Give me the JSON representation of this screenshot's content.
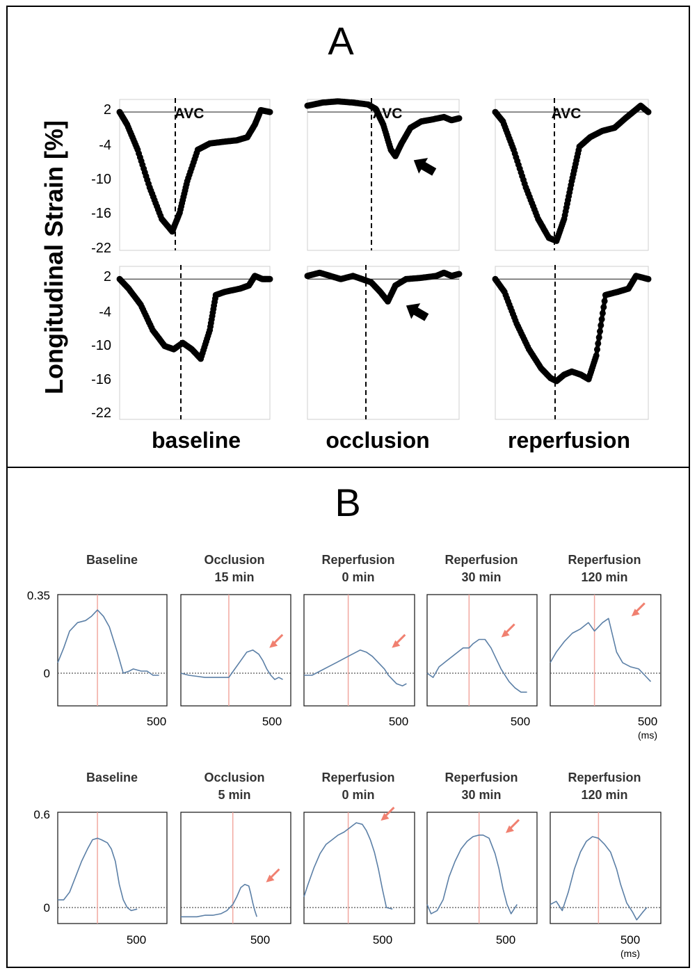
{
  "panel_a": {
    "letter": "A",
    "ylabel": "Longitudinal Strain [%]",
    "yticks": [
      "2",
      "-4",
      "-10",
      "-16",
      "-22"
    ],
    "column_labels": [
      "baseline",
      "occlusion",
      "reperfusion"
    ],
    "avc_label": "AVC"
  },
  "panel_b": {
    "letter": "B",
    "row1_titles": [
      [
        "Baseline",
        ""
      ],
      [
        "Occlusion",
        "15 min"
      ],
      [
        "Reperfusion",
        "0 min"
      ],
      [
        "Reperfusion",
        "30 min"
      ],
      [
        "Reperfusion",
        "120 min"
      ]
    ],
    "row2_titles": [
      [
        "Baseline",
        ""
      ],
      [
        "Occlusion",
        "5 min"
      ],
      [
        "Reperfusion",
        "0 min"
      ],
      [
        "Reperfusion",
        "30 min"
      ],
      [
        "Reperfusion",
        "120 min"
      ]
    ],
    "row1_yticks": [
      "0.35",
      "0"
    ],
    "row2_yticks": [
      "0.6",
      "0"
    ],
    "xtick": "500",
    "xunit": "(ms)"
  },
  "colors": {
    "strain_trace": "#000000",
    "b_trace": "#5b7fa6",
    "b_marker": "#f2a8a0",
    "arrow": "#f08070"
  },
  "chart_data": [
    {
      "type": "line",
      "panel": "A",
      "ylabel": "Longitudinal Strain [%]",
      "ylim": [
        -22,
        2
      ],
      "yticks": [
        2,
        -4,
        -10,
        -16,
        -22
      ],
      "x_range": [
        0,
        1
      ],
      "series": [
        {
          "column": "baseline",
          "row": 1,
          "avc": 0.35,
          "x": [
            0,
            0.05,
            0.12,
            0.2,
            0.28,
            0.35,
            0.4,
            0.45,
            0.52,
            0.6,
            0.7,
            0.78,
            0.85,
            0.9,
            0.94,
            1
          ],
          "y": [
            0,
            -2,
            -6,
            -12,
            -17,
            -19,
            -16,
            -11,
            -6,
            -5,
            -4.7,
            -4.5,
            -4,
            -2,
            0.3,
            0
          ]
        },
        {
          "column": "occlusion",
          "row": 1,
          "avc": 0.42,
          "x": [
            0,
            0.1,
            0.2,
            0.3,
            0.4,
            0.45,
            0.5,
            0.55,
            0.58,
            0.62,
            0.68,
            0.75,
            0.82,
            0.9,
            0.95,
            1
          ],
          "y": [
            1,
            1.5,
            1.7,
            1.5,
            1.2,
            0.5,
            -2,
            -6,
            -7,
            -5,
            -2.5,
            -1.5,
            -1.2,
            -0.8,
            -1.3,
            -1
          ]
        },
        {
          "column": "reperfusion",
          "row": 1,
          "avc": 0.4,
          "x": [
            0,
            0.05,
            0.12,
            0.2,
            0.28,
            0.35,
            0.4,
            0.45,
            0.5,
            0.55,
            0.62,
            0.7,
            0.78,
            0.85,
            0.9,
            0.95,
            1
          ],
          "y": [
            0,
            -1.5,
            -6,
            -12,
            -17,
            -20,
            -20.5,
            -17,
            -11,
            -5.5,
            -4,
            -3,
            -2.5,
            -1,
            0,
            1,
            0
          ]
        },
        {
          "column": "baseline",
          "row": 2,
          "avc": 0.4,
          "x": [
            0,
            0.06,
            0.14,
            0.22,
            0.3,
            0.36,
            0.42,
            0.48,
            0.54,
            0.6,
            0.64,
            0.7,
            0.8,
            0.86,
            0.9,
            0.95,
            1
          ],
          "y": [
            0,
            -1.5,
            -4,
            -8,
            -10.5,
            -11,
            -10,
            -11,
            -12.5,
            -8,
            -2.5,
            -2,
            -1.5,
            -1,
            0.5,
            0,
            0
          ]
        },
        {
          "column": "occlusion",
          "row": 2,
          "avc": 0.4,
          "x": [
            0,
            0.08,
            0.15,
            0.22,
            0.3,
            0.36,
            0.42,
            0.48,
            0.53,
            0.58,
            0.65,
            0.75,
            0.85,
            0.9,
            0.95,
            1
          ],
          "y": [
            0.5,
            1,
            0.5,
            0,
            0.5,
            0,
            -0.5,
            -2,
            -3.5,
            -1,
            0,
            0.2,
            0.5,
            1,
            0.5,
            0.8
          ]
        },
        {
          "column": "reperfusion",
          "row": 2,
          "avc": 0.4,
          "x": [
            0,
            0.06,
            0.14,
            0.22,
            0.3,
            0.36,
            0.4,
            0.45,
            0.5,
            0.56,
            0.61,
            0.66,
            0.72,
            0.8,
            0.87,
            0.92,
            1
          ],
          "y": [
            0,
            -2,
            -7,
            -11,
            -14,
            -15.5,
            -16,
            -15,
            -14.5,
            -15,
            -15.7,
            -12,
            -2.5,
            -2,
            -1.5,
            0.5,
            0
          ]
        }
      ]
    },
    {
      "type": "line",
      "panel": "B",
      "row": 1,
      "ylim": [
        -0.1,
        0.35
      ],
      "yticks": [
        0,
        0.35
      ],
      "x_range": [
        0,
        550
      ],
      "xticks": [
        500
      ],
      "series": [
        {
          "title": "Baseline",
          "marker": 200,
          "x": [
            0,
            30,
            60,
            100,
            140,
            170,
            200,
            230,
            260,
            300,
            330,
            360,
            380,
            420,
            450,
            480,
            510
          ],
          "y": [
            0.05,
            0.12,
            0.2,
            0.24,
            0.25,
            0.27,
            0.3,
            0.27,
            0.22,
            0.1,
            0,
            0.01,
            0.02,
            0.01,
            0.01,
            -0.01,
            -0.01
          ]
        },
        {
          "title": "Occlusion 15 min",
          "marker": 240,
          "x": [
            0,
            40,
            80,
            120,
            160,
            200,
            240,
            270,
            300,
            330,
            360,
            390,
            410,
            430,
            450,
            470,
            490,
            510
          ],
          "y": [
            0,
            -0.01,
            -0.015,
            -0.02,
            -0.02,
            -0.02,
            -0.02,
            0.02,
            0.06,
            0.1,
            0.11,
            0.09,
            0.06,
            0.02,
            -0.01,
            -0.03,
            -0.02,
            -0.03
          ]
        },
        {
          "title": "Reperfusion 0 min",
          "marker": 220,
          "x": [
            0,
            40,
            80,
            120,
            160,
            200,
            240,
            280,
            310,
            340,
            370,
            400,
            420,
            440,
            460,
            490,
            510
          ],
          "y": [
            -0.01,
            -0.01,
            0.01,
            0.03,
            0.05,
            0.07,
            0.09,
            0.11,
            0.1,
            0.08,
            0.05,
            0.02,
            -0.01,
            -0.03,
            -0.05,
            -0.06,
            -0.05
          ]
        },
        {
          "title": "Reperfusion 30 min",
          "marker": 210,
          "x": [
            0,
            30,
            60,
            100,
            140,
            180,
            210,
            230,
            260,
            290,
            320,
            350,
            370,
            390,
            410,
            440,
            470,
            500
          ],
          "y": [
            0,
            -0.02,
            0.03,
            0.06,
            0.09,
            0.12,
            0.12,
            0.14,
            0.16,
            0.16,
            0.12,
            0.06,
            0.02,
            -0.01,
            -0.04,
            -0.07,
            -0.09,
            -0.09
          ]
        },
        {
          "title": "Reperfusion 120 min",
          "marker": 220,
          "x": [
            0,
            30,
            70,
            110,
            150,
            190,
            220,
            240,
            260,
            290,
            310,
            330,
            360,
            400,
            440,
            470,
            500
          ],
          "y": [
            0.05,
            0.1,
            0.15,
            0.19,
            0.21,
            0.24,
            0.2,
            0.22,
            0.24,
            0.26,
            0.18,
            0.1,
            0.05,
            0.03,
            0.02,
            -0.01,
            -0.04
          ]
        }
      ]
    },
    {
      "type": "line",
      "panel": "B",
      "row": 2,
      "ylim": [
        -0.1,
        0.6
      ],
      "yticks": [
        0,
        0.6
      ],
      "x_range": [
        0,
        550
      ],
      "xticks": [
        500
      ],
      "series": [
        {
          "title": "Baseline",
          "marker": 200,
          "x": [
            0,
            30,
            60,
            90,
            120,
            150,
            175,
            200,
            220,
            250,
            270,
            290,
            310,
            330,
            350,
            370,
            400
          ],
          "y": [
            0.05,
            0.05,
            0.1,
            0.2,
            0.3,
            0.38,
            0.44,
            0.45,
            0.44,
            0.42,
            0.38,
            0.3,
            0.15,
            0.05,
            0,
            -0.02,
            -0.01
          ]
        },
        {
          "title": "Occlusion 5 min",
          "marker": 260,
          "x": [
            0,
            40,
            80,
            120,
            160,
            200,
            230,
            260,
            280,
            300,
            320,
            340,
            350,
            360,
            370,
            380
          ],
          "y": [
            -0.06,
            -0.06,
            -0.06,
            -0.05,
            -0.05,
            -0.04,
            -0.02,
            0.02,
            0.07,
            0.13,
            0.15,
            0.14,
            0.09,
            0.03,
            -0.02,
            -0.06
          ]
        },
        {
          "title": "Reperfusion 0 min",
          "marker": 220,
          "x": [
            0,
            20,
            50,
            80,
            110,
            140,
            170,
            200,
            230,
            260,
            290,
            310,
            330,
            350,
            370,
            390,
            410,
            440
          ],
          "y": [
            0.07,
            0.15,
            0.26,
            0.35,
            0.41,
            0.44,
            0.47,
            0.49,
            0.52,
            0.55,
            0.54,
            0.5,
            0.44,
            0.36,
            0.25,
            0.12,
            0,
            -0.01
          ]
        },
        {
          "title": "Reperfusion 30 min",
          "marker": 260,
          "x": [
            0,
            20,
            50,
            80,
            110,
            140,
            170,
            200,
            230,
            260,
            280,
            310,
            340,
            360,
            380,
            400,
            420,
            450
          ],
          "y": [
            0.02,
            -0.04,
            -0.02,
            0.05,
            0.2,
            0.3,
            0.38,
            0.43,
            0.46,
            0.47,
            0.47,
            0.45,
            0.35,
            0.25,
            0.12,
            0.02,
            -0.04,
            0.02
          ]
        },
        {
          "title": "Reperfusion 120 min",
          "marker": 240,
          "x": [
            0,
            30,
            60,
            90,
            120,
            150,
            180,
            210,
            240,
            270,
            300,
            330,
            350,
            380,
            410,
            430,
            460,
            480
          ],
          "y": [
            0.02,
            0.04,
            -0.02,
            0.1,
            0.25,
            0.36,
            0.43,
            0.46,
            0.45,
            0.41,
            0.36,
            0.25,
            0.15,
            0.03,
            -0.03,
            -0.08,
            -0.03,
            0
          ]
        }
      ]
    }
  ]
}
